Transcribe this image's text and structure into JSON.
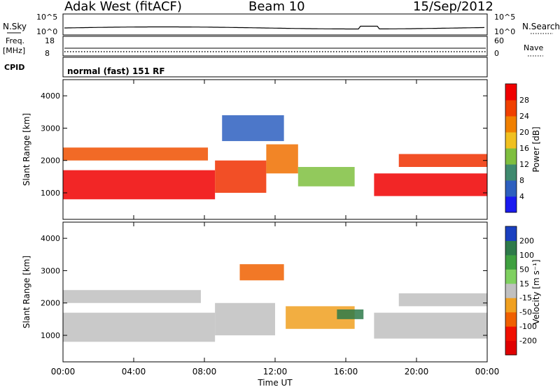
{
  "header": {
    "station": "Adak West (fitACF)",
    "beam": "Beam 10",
    "date": "15/Sep/2012"
  },
  "panels": {
    "nsky": {
      "label": "N.Sky",
      "right_label": "N.Search",
      "ticks_left": [
        "10^5",
        "10^0"
      ],
      "ticks_right": [
        "10^5",
        "10^0"
      ]
    },
    "freq": {
      "label": "Freq.",
      "unit": "[MHz]",
      "ticks_left": [
        "18",
        "8"
      ],
      "right_label": "Nave",
      "ticks_right": [
        "60",
        "0"
      ]
    },
    "cpid": {
      "label": "CPID",
      "text": "normal (fast) 151 RF"
    }
  },
  "chart_data": [
    {
      "type": "heatmap",
      "quantity": "Power",
      "ylabel": "Slant Range [km]",
      "yticks": [
        1000,
        2000,
        3000,
        4000
      ],
      "ylim": [
        180,
        4500
      ],
      "colorbar": {
        "label": "Power [dB]",
        "ticks": [
          "4",
          "8",
          "12",
          "16",
          "20",
          "24",
          "28"
        ],
        "colors": [
          "#1a1af0",
          "#2d5fbf",
          "#3f8a6f",
          "#7fbf3f",
          "#f0c020",
          "#f08000",
          "#f04000",
          "#f00000"
        ]
      },
      "bands": [
        {
          "t0": 0.0,
          "t1": 8.6,
          "r0": 800,
          "r1": 1700,
          "color": "#f00000"
        },
        {
          "t0": 8.6,
          "t1": 11.5,
          "r0": 1000,
          "r1": 2000,
          "color": "#f03000"
        },
        {
          "t0": 11.5,
          "t1": 13.3,
          "r0": 1600,
          "r1": 2500,
          "color": "#f07000"
        },
        {
          "t0": 13.3,
          "t1": 16.5,
          "r0": 1200,
          "r1": 1800,
          "color": "#7fbf3f"
        },
        {
          "t0": 17.6,
          "t1": 24.0,
          "r0": 900,
          "r1": 1600,
          "color": "#f00000"
        },
        {
          "t0": 0.0,
          "t1": 8.2,
          "r0": 2000,
          "r1": 2400,
          "color": "#f05000"
        },
        {
          "t0": 19.0,
          "t1": 24.0,
          "r0": 1800,
          "r1": 2200,
          "color": "#f03000"
        },
        {
          "t0": 9.0,
          "t1": 12.5,
          "r0": 2600,
          "r1": 3400,
          "color": "#2d5fbf"
        }
      ]
    },
    {
      "type": "heatmap",
      "quantity": "Velocity",
      "ylabel": "Slant Range [km]",
      "yticks": [
        1000,
        2000,
        3000,
        4000
      ],
      "ylim": [
        180,
        4500
      ],
      "xlabel": "Time UT",
      "xticks": [
        "00:00",
        "04:00",
        "08:00",
        "12:00",
        "16:00",
        "20:00",
        "00:00"
      ],
      "xlim": [
        0,
        24
      ],
      "colorbar": {
        "label": "Velocity [m s⁻¹]",
        "ticks": [
          "200",
          "100",
          "50",
          "15",
          "-15",
          "-50",
          "-100",
          "-200"
        ],
        "colors": [
          "#1a40c0",
          "#2e7a4a",
          "#3fa040",
          "#7fd060",
          "#c0c0c0",
          "#f0a020",
          "#f06000",
          "#f01000",
          "#e00000"
        ]
      },
      "bands": [
        {
          "t0": 0.0,
          "t1": 8.6,
          "r0": 800,
          "r1": 1700,
          "color": "#c0c0c0"
        },
        {
          "t0": 0.0,
          "t1": 7.8,
          "r0": 2000,
          "r1": 2400,
          "color": "#c0c0c0"
        },
        {
          "t0": 8.6,
          "t1": 12.0,
          "r0": 1000,
          "r1": 2000,
          "color": "#c0c0c0"
        },
        {
          "t0": 12.6,
          "t1": 16.5,
          "r0": 1200,
          "r1": 1900,
          "color": "#f0a020"
        },
        {
          "t0": 10.0,
          "t1": 12.5,
          "r0": 2700,
          "r1": 3200,
          "color": "#f06000"
        },
        {
          "t0": 17.6,
          "t1": 24.0,
          "r0": 900,
          "r1": 1700,
          "color": "#c0c0c0"
        },
        {
          "t0": 19.0,
          "t1": 24.0,
          "r0": 1900,
          "r1": 2300,
          "color": "#c0c0c0"
        },
        {
          "t0": 15.5,
          "t1": 17.0,
          "r0": 1500,
          "r1": 1800,
          "color": "#2e7a4a"
        }
      ]
    }
  ]
}
